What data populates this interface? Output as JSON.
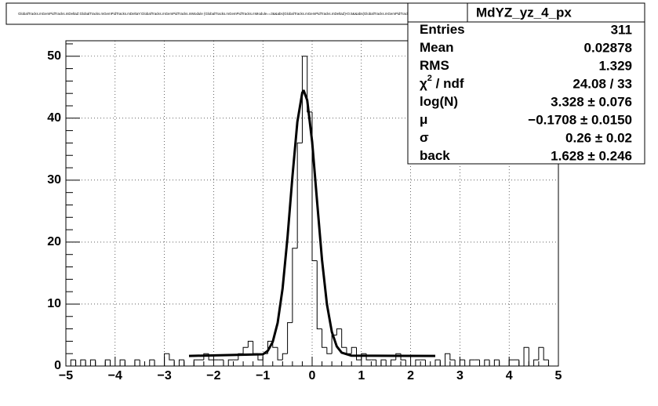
{
  "chart_data": {
    "type": "histogram",
    "title": "GlobalTracks.mGemPidTracks.mDeltaZ:GlobalTracks.mGemPidTracks.mDeltaY:GlobalTracks.mGemPidTracks.mModule {GlobalTracks.mGemPidTracks.mModule==3&&abs(GlobalTracks.mGemPidTracks.mDeltaZ)<0.5&&abs(GlobalTracks.mGemPidTracks.mDeltaY)<0.5} yz projection",
    "bins": [
      -5.0,
      -4.9,
      -4.8,
      -4.7,
      -4.6,
      -4.5,
      -4.4,
      -4.3,
      -4.2,
      -4.1,
      -4.0,
      -3.9,
      -3.8,
      -3.7,
      -3.6,
      -3.5,
      -3.4,
      -3.3,
      -3.2,
      -3.1,
      -3.0,
      -2.9,
      -2.8,
      -2.7,
      -2.6,
      -2.5,
      -2.4,
      -2.3,
      -2.2,
      -2.1,
      -2.0,
      -1.9,
      -1.8,
      -1.7,
      -1.6,
      -1.5,
      -1.4,
      -1.3,
      -1.2,
      -1.1,
      -1.0,
      -0.9,
      -0.8,
      -0.7,
      -0.6,
      -0.5,
      -0.4,
      -0.3,
      -0.2,
      -0.1,
      0.0,
      0.1,
      0.2,
      0.3,
      0.4,
      0.5,
      0.6,
      0.7,
      0.8,
      0.9,
      1.0,
      1.1,
      1.2,
      1.3,
      1.4,
      1.5,
      1.6,
      1.7,
      1.8,
      1.9,
      2.0,
      2.1,
      2.2,
      2.3,
      2.4,
      2.5,
      2.6,
      2.7,
      2.8,
      2.9,
      3.0,
      3.1,
      3.2,
      3.3,
      3.4,
      3.5,
      3.6,
      3.7,
      3.8,
      3.9,
      4.0,
      4.1,
      4.2,
      4.3,
      4.4,
      4.5,
      4.6,
      4.7,
      4.8,
      4.9,
      5.0
    ],
    "values": [
      0,
      1,
      0,
      1,
      0,
      1,
      0,
      0,
      1,
      0,
      0,
      1,
      0,
      0,
      1,
      0,
      0,
      1,
      0,
      0,
      2,
      1,
      0,
      1,
      0,
      0,
      1,
      1,
      2,
      1,
      1,
      1,
      0,
      1,
      1,
      2,
      3,
      4,
      2,
      1,
      2,
      4,
      3,
      1,
      2,
      7,
      19,
      36,
      50,
      41,
      17,
      6,
      3,
      2,
      5,
      6,
      3,
      2,
      3,
      1,
      2,
      1,
      1,
      0,
      1,
      0,
      1,
      2,
      1,
      0,
      0,
      1,
      1,
      0,
      0,
      1,
      0,
      2,
      1,
      0,
      1,
      0,
      1,
      1,
      0,
      1,
      0,
      1,
      0,
      0,
      1,
      1,
      0,
      3,
      0,
      1,
      3,
      1,
      0,
      0
    ],
    "color": "#000000",
    "fit": {
      "color": "#000000",
      "x": [
        -2.5,
        -1.0,
        -0.9,
        -0.8,
        -0.7,
        -0.6,
        -0.5,
        -0.4,
        -0.3,
        -0.2,
        -0.17,
        -0.1,
        0.0,
        0.1,
        0.2,
        0.3,
        0.4,
        0.5,
        0.6,
        0.8,
        2.5
      ],
      "values": [
        1.63,
        1.89,
        2.46,
        3.9,
        6.98,
        12.51,
        20.76,
        30.58,
        39.4,
        44.14,
        44.43,
        42.9,
        36.21,
        26.6,
        17.17,
        9.98,
        5.5,
        3.17,
        2.16,
        1.67,
        1.63
      ]
    },
    "xlim": [
      -5,
      5
    ],
    "ylim": [
      0,
      52.5
    ],
    "xticks": [
      {
        "value": -5,
        "label": "−5"
      },
      {
        "value": -4,
        "label": "−4"
      },
      {
        "value": -3,
        "label": "−3"
      },
      {
        "value": -2,
        "label": "−2"
      },
      {
        "value": -1,
        "label": "−1"
      },
      0,
      1,
      2,
      3,
      4,
      5
    ],
    "yticks": [
      0,
      10,
      20,
      30,
      40,
      50
    ],
    "grid": true,
    "stats": {
      "name": "MdYZ_yz_4_px",
      "rows": [
        {
          "label": "Entries",
          "value": 311
        },
        {
          "label": "Mean",
          "value": 0.02878
        },
        {
          "label": "RMS",
          "value": 1.329
        },
        {
          "label": "χ",
          "sup": "2",
          "rest": " / ndf",
          "value": "24.08 / 33"
        },
        {
          "label": "log(N)",
          "value": "3.328 ± 0.076"
        },
        {
          "label": "μ",
          "value": "−0.1708 ± 0.0150"
        },
        {
          "label": "σ",
          "value": "0.26 ± 0.02"
        },
        {
          "label": "back",
          "value": "1.628 ± 0.246"
        }
      ]
    }
  }
}
